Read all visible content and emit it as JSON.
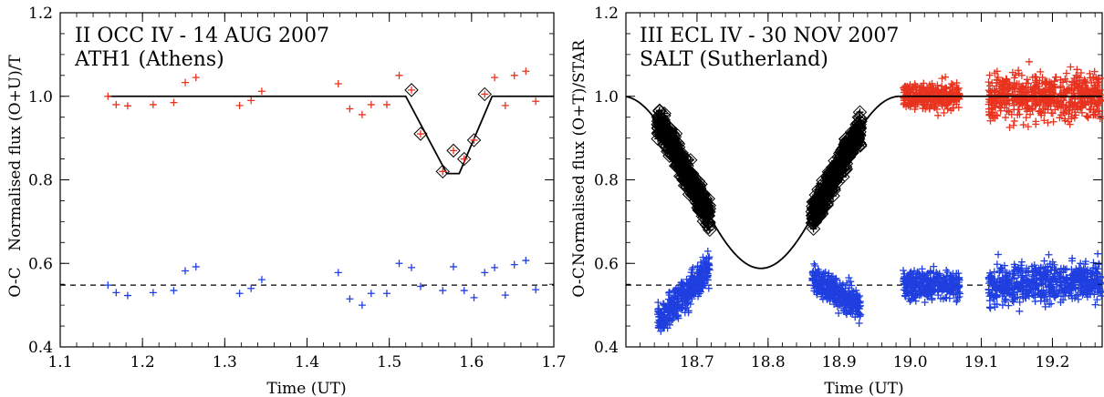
{
  "colors": {
    "data": "#e8331f",
    "residual": "#1f3fe0",
    "model": "#000000",
    "diamond": "#000000"
  },
  "chart_data": [
    {
      "type": "line",
      "title": "II OCC IV - 14 AUG 2007",
      "subtitle": "ATH1 (Athens)",
      "xlabel": "Time (UT)",
      "ylabel": "Normalised flux (O+U)/T",
      "residual_label": "O-C",
      "xlim": [
        1.1,
        1.7
      ],
      "ylim": [
        0.4,
        1.2
      ],
      "x_ticks": [
        "1.1",
        "1.2",
        "1.3",
        "1.4",
        "1.5",
        "1.6",
        "1.7"
      ],
      "y_ticks": [
        "0.4",
        "0.6",
        "0.8",
        "1.0",
        "1.2"
      ],
      "model": {
        "x": [
          1.1,
          1.52,
          1.57,
          1.585,
          1.625,
          1.7
        ],
        "y": [
          1.0,
          1.0,
          0.815,
          0.815,
          1.0,
          1.0
        ]
      },
      "residual_zero": 0.548,
      "series": [
        {
          "kind": "flux",
          "x": [
            1.158,
            1.168,
            1.182,
            1.213,
            1.238,
            1.252,
            1.265,
            1.318,
            1.332,
            1.345,
            1.438,
            1.452,
            1.467,
            1.478,
            1.497,
            1.512,
            1.527,
            1.538,
            1.565,
            1.578,
            1.591,
            1.603,
            1.616,
            1.628,
            1.641,
            1.652,
            1.666,
            1.678
          ],
          "y": [
            1.0,
            0.98,
            0.977,
            0.98,
            0.985,
            1.033,
            1.045,
            0.978,
            0.99,
            1.012,
            1.03,
            0.97,
            0.956,
            0.98,
            0.98,
            1.05,
            1.015,
            0.91,
            0.82,
            0.87,
            0.85,
            0.895,
            1.005,
            1.045,
            0.978,
            1.05,
            1.06,
            0.988
          ]
        },
        {
          "kind": "residual",
          "x": [
            1.158,
            1.168,
            1.182,
            1.213,
            1.238,
            1.252,
            1.265,
            1.318,
            1.332,
            1.345,
            1.438,
            1.452,
            1.467,
            1.478,
            1.497,
            1.512,
            1.527,
            1.538,
            1.565,
            1.578,
            1.591,
            1.603,
            1.616,
            1.628,
            1.641,
            1.652,
            1.666,
            1.678
          ],
          "y": [
            0.548,
            0.53,
            0.523,
            0.53,
            0.535,
            0.582,
            0.592,
            0.528,
            0.54,
            0.561,
            0.578,
            0.515,
            0.5,
            0.528,
            0.528,
            0.6,
            0.59,
            0.545,
            0.535,
            0.592,
            0.535,
            0.518,
            0.578,
            0.59,
            0.524,
            0.597,
            0.607,
            0.537
          ]
        }
      ],
      "diamond_x": [
        1.527,
        1.538,
        1.565,
        1.578,
        1.591,
        1.603,
        1.616
      ]
    },
    {
      "type": "line",
      "title": "III ECL IV - 30 NOV 2007",
      "subtitle": "SALT (Sutherland)",
      "xlabel": "Time (UT)",
      "ylabel": "Normalised flux (O+T)/STAR",
      "residual_label": "O-C",
      "xlim": [
        18.6,
        19.27
      ],
      "ylim": [
        0.4,
        1.2
      ],
      "x_ticks": [
        "18.7",
        "18.8",
        "18.9",
        "19.0",
        "19.1",
        "19.2"
      ],
      "y_ticks": [
        "0.4",
        "0.6",
        "0.8",
        "1.0",
        "1.2"
      ],
      "model": {
        "center": 18.79,
        "min": 0.588,
        "half_width": 0.195
      },
      "residual_zero": 0.548,
      "segments": [
        {
          "x_start": 18.645,
          "x_end": 18.718,
          "curve": "model",
          "spread": 0.035,
          "residual_start": 0.46,
          "residual_end": 0.585,
          "residual_spread": 0.04,
          "n": 360,
          "diamonds": true
        },
        {
          "x_start": 18.862,
          "x_end": 18.93,
          "curve": "model",
          "spread": 0.035,
          "residual_start": 0.56,
          "residual_end": 0.5,
          "residual_spread": 0.035,
          "n": 340,
          "diamonds": true
        },
        {
          "x_start": 18.99,
          "x_end": 19.07,
          "curve": "flat",
          "spread": 0.03,
          "residual_start": 0.548,
          "residual_end": 0.548,
          "residual_spread": 0.035,
          "n": 320,
          "diamonds": false
        },
        {
          "x_start": 19.11,
          "x_end": 19.27,
          "curve": "flat",
          "spread": 0.055,
          "residual_start": 0.548,
          "residual_end": 0.56,
          "residual_spread": 0.05,
          "n": 600,
          "diamonds": false
        }
      ]
    }
  ]
}
